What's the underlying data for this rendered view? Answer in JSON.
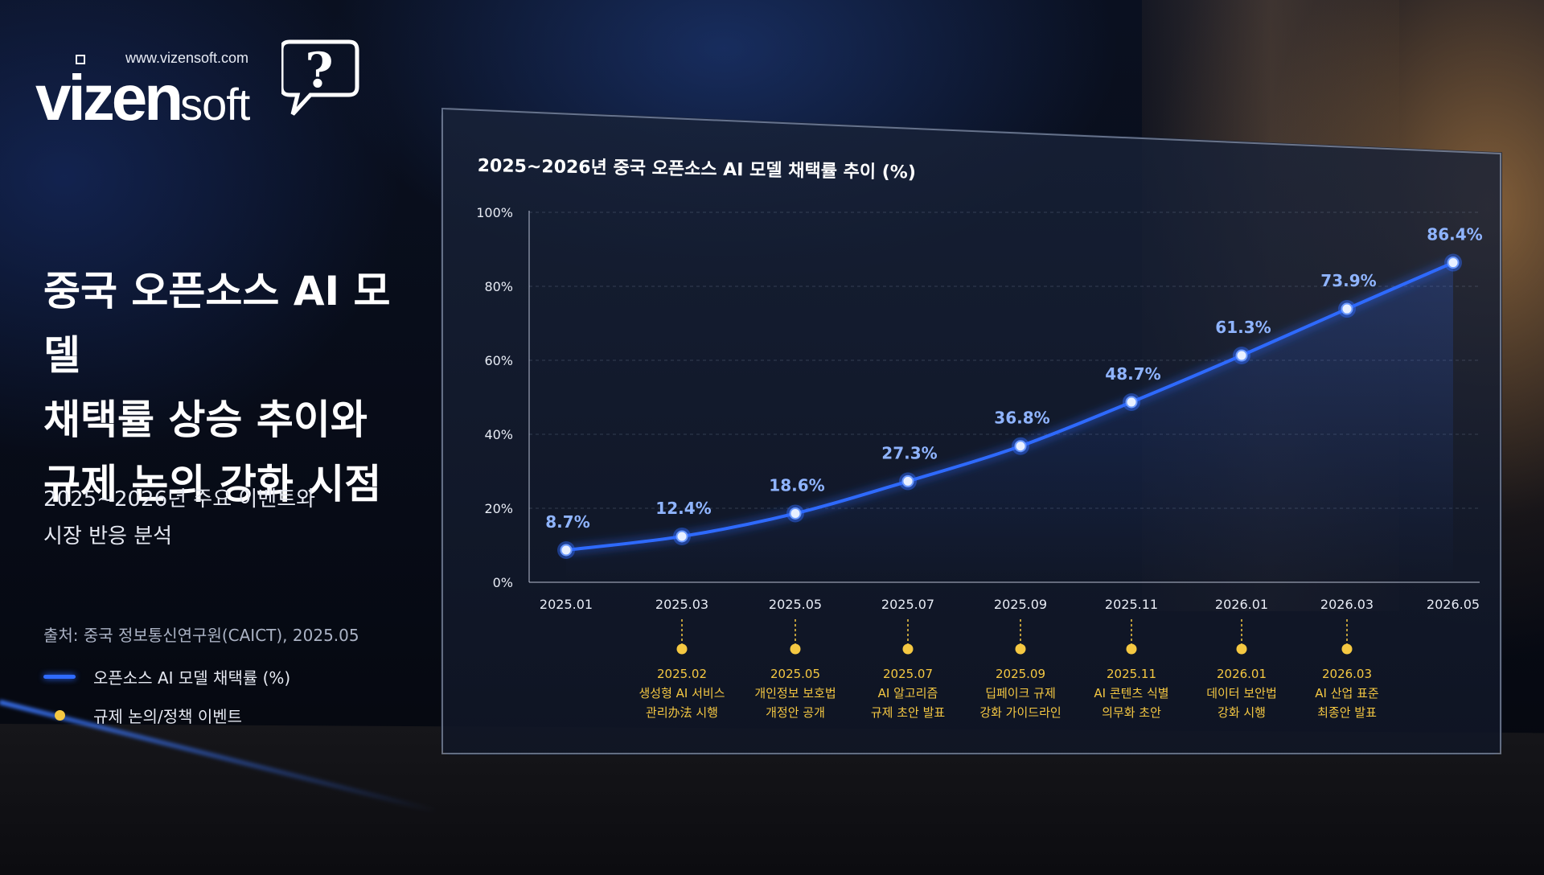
{
  "logo": {
    "url": "www.vizensoft.com",
    "word_bold": "vizen",
    "word_light": "soft",
    "bubble_glyph": "?"
  },
  "headline": [
    "중국 오픈소스 AI 모델",
    "채택률 상승 추이와",
    "규제 논의 강화 시점"
  ],
  "subhead": [
    "2025~2026년 주요 이벤트와",
    "시장 반응 분석"
  ],
  "source": "출처: 중국 정보통신연구원(CAICT), 2025.05",
  "legend": {
    "line_label": "오픈소스 AI 모델 채택률 (%)",
    "dot_label": "규제 논의/정책 이벤트"
  },
  "colors": {
    "line": "#2f6bff",
    "event": "#f5c842",
    "value_label": "#8fb4ff"
  },
  "chart_data": {
    "type": "line",
    "title": "2025~2026년 중국 오픈소스 AI 모델 채택률 추이 (%)",
    "x": [
      "2025.01",
      "2025.03",
      "2025.05",
      "2025.07",
      "2025.09",
      "2025.11",
      "2026.01",
      "2026.03",
      "2026.05"
    ],
    "series": [
      {
        "name": "오픈소스 AI 모델 채택률 (%)",
        "values": [
          8.7,
          12.4,
          18.6,
          27.3,
          36.8,
          48.7,
          61.3,
          73.9,
          86.4
        ],
        "labels": [
          "8.7%",
          "12.4%",
          "18.6%",
          "27.3%",
          "36.8%",
          "48.7%",
          "61.3%",
          "73.9%",
          "86.4%"
        ]
      }
    ],
    "ylim": [
      0,
      100
    ],
    "yticks": [
      "0%",
      "20%",
      "40%",
      "60%",
      "80%",
      "100%"
    ],
    "ytick_values": [
      0,
      20,
      40,
      60,
      80,
      100
    ],
    "grid": true,
    "events": [
      {
        "x_index": 1,
        "lines": [
          "2025.02",
          "생성형 AI 서비스",
          "관리办法 시행"
        ]
      },
      {
        "x_index": 2,
        "lines": [
          "2025.05",
          "개인정보 보호법",
          "개정안 공개"
        ]
      },
      {
        "x_index": 3,
        "lines": [
          "2025.07",
          "AI 알고리즘",
          "규제 초안 발표"
        ]
      },
      {
        "x_index": 4,
        "lines": [
          "2025.09",
          "딥페이크 규제",
          "강화 가이드라인"
        ]
      },
      {
        "x_index": 5,
        "lines": [
          "2025.11",
          "AI 콘텐츠 식별",
          "의무화 초안"
        ]
      },
      {
        "x_index": 6,
        "lines": [
          "2026.01",
          "데이터 보안법",
          "강화 시행"
        ]
      },
      {
        "x_index": 7,
        "lines": [
          "2026.03",
          "AI 산업 표준",
          "최종안 발표"
        ]
      }
    ]
  }
}
